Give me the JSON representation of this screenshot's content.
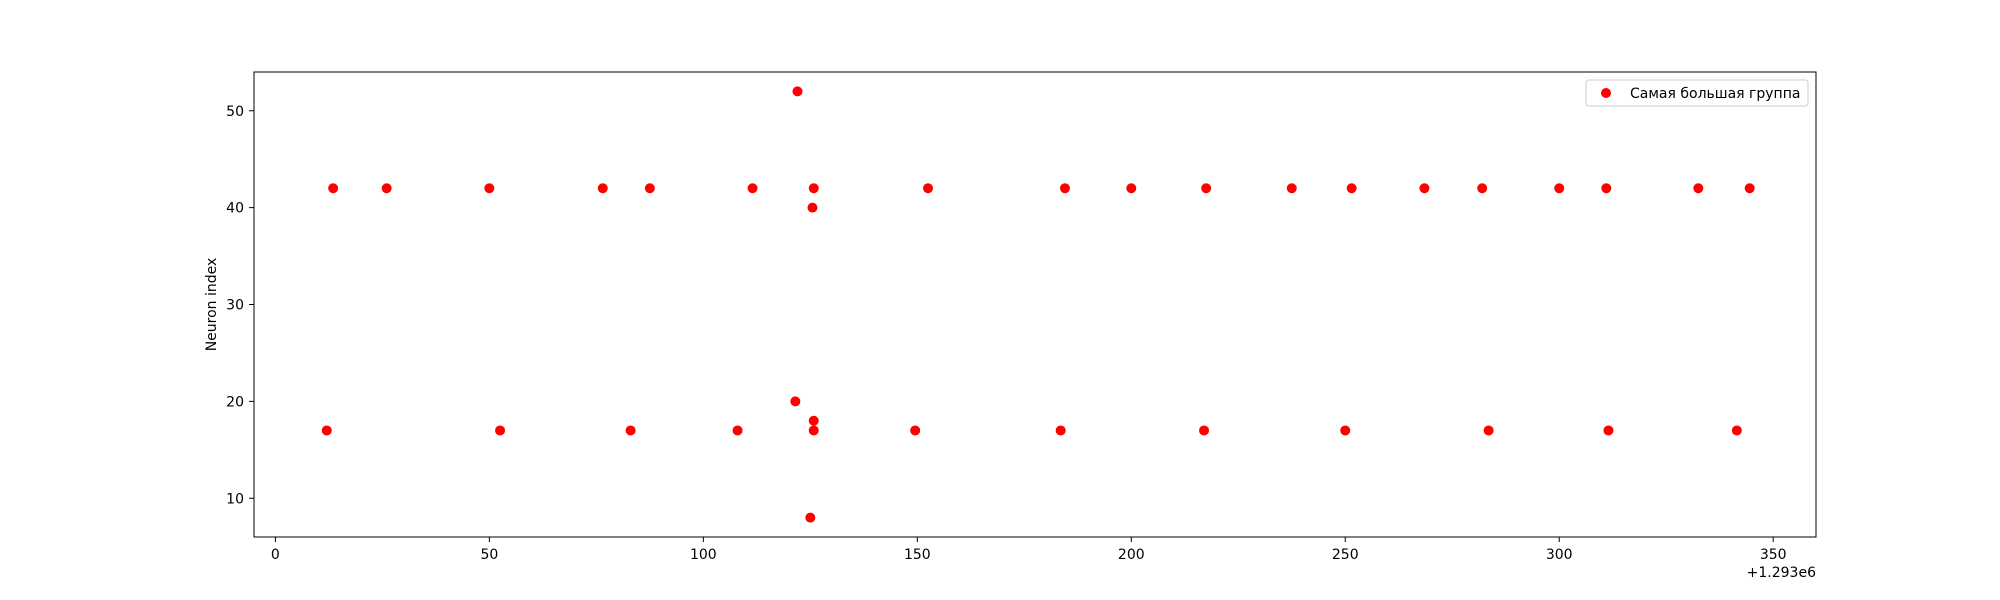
{
  "chart_data": {
    "type": "scatter",
    "title": "",
    "xlabel": "",
    "ylabel": "Neuron index",
    "x_offset_label": "+1.293e6",
    "xlim": [
      -5,
      360
    ],
    "ylim": [
      6,
      54
    ],
    "xticks": [
      0,
      50,
      100,
      150,
      200,
      250,
      300,
      350
    ],
    "yticks": [
      10,
      20,
      30,
      40,
      50
    ],
    "grid": false,
    "legend_position": "top-right",
    "marker_color": "#ff0000",
    "series": [
      {
        "name": "Самая большая группа",
        "color": "#ff0000",
        "points": [
          {
            "x": 12,
            "y": 17
          },
          {
            "x": 13.5,
            "y": 42
          },
          {
            "x": 26,
            "y": 42
          },
          {
            "x": 50,
            "y": 42
          },
          {
            "x": 52.5,
            "y": 17
          },
          {
            "x": 76.5,
            "y": 42
          },
          {
            "x": 83,
            "y": 17
          },
          {
            "x": 87.5,
            "y": 42
          },
          {
            "x": 108,
            "y": 17
          },
          {
            "x": 111.5,
            "y": 42
          },
          {
            "x": 121.5,
            "y": 20
          },
          {
            "x": 122,
            "y": 52
          },
          {
            "x": 125,
            "y": 8
          },
          {
            "x": 125.5,
            "y": 40
          },
          {
            "x": 125.8,
            "y": 42
          },
          {
            "x": 125.8,
            "y": 18
          },
          {
            "x": 125.8,
            "y": 17
          },
          {
            "x": 149.5,
            "y": 17
          },
          {
            "x": 152.5,
            "y": 42
          },
          {
            "x": 183.5,
            "y": 17
          },
          {
            "x": 184.5,
            "y": 42
          },
          {
            "x": 200,
            "y": 42
          },
          {
            "x": 217,
            "y": 17
          },
          {
            "x": 217.5,
            "y": 42
          },
          {
            "x": 237.5,
            "y": 42
          },
          {
            "x": 250,
            "y": 17
          },
          {
            "x": 251.5,
            "y": 42
          },
          {
            "x": 268.5,
            "y": 42
          },
          {
            "x": 282,
            "y": 42
          },
          {
            "x": 283.5,
            "y": 17
          },
          {
            "x": 300,
            "y": 42
          },
          {
            "x": 311,
            "y": 42
          },
          {
            "x": 311.5,
            "y": 17
          },
          {
            "x": 332.5,
            "y": 42
          },
          {
            "x": 341.5,
            "y": 17
          },
          {
            "x": 344.5,
            "y": 42
          }
        ]
      }
    ]
  }
}
